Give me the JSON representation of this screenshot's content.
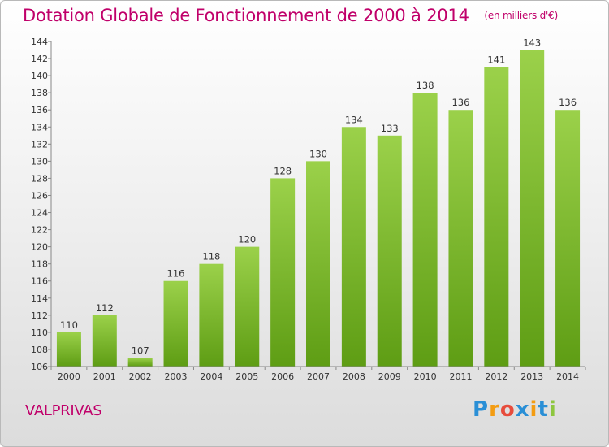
{
  "chart_data": {
    "type": "bar",
    "title": "Dotation Globale de Fonctionnement de 2000 à 2014",
    "subtitle": "(en milliers d'€)",
    "categories": [
      "2000",
      "2001",
      "2002",
      "2003",
      "2004",
      "2005",
      "2006",
      "2007",
      "2008",
      "2009",
      "2010",
      "2011",
      "2012",
      "2013",
      "2014"
    ],
    "values": [
      110,
      112,
      107,
      116,
      118,
      120,
      128,
      130,
      134,
      133,
      138,
      136,
      141,
      143,
      136
    ],
    "ylim": [
      106,
      144
    ],
    "yticks": [
      106,
      108,
      110,
      112,
      114,
      116,
      118,
      120,
      122,
      124,
      126,
      128,
      130,
      132,
      134,
      136,
      138,
      140,
      142,
      144
    ],
    "xlabel": "",
    "ylabel": "",
    "grid": false,
    "bar_color": "#7db82e"
  },
  "commune": "VALPRIVAS",
  "logo": {
    "letters": [
      "P",
      "r",
      "o",
      "x",
      "i",
      "t",
      "i"
    ],
    "colors": [
      "#2a8fd6",
      "#f39c12",
      "#e74c3c",
      "#2a8fd6",
      "#f39c12",
      "#2a8fd6",
      "#8dc63f"
    ]
  }
}
